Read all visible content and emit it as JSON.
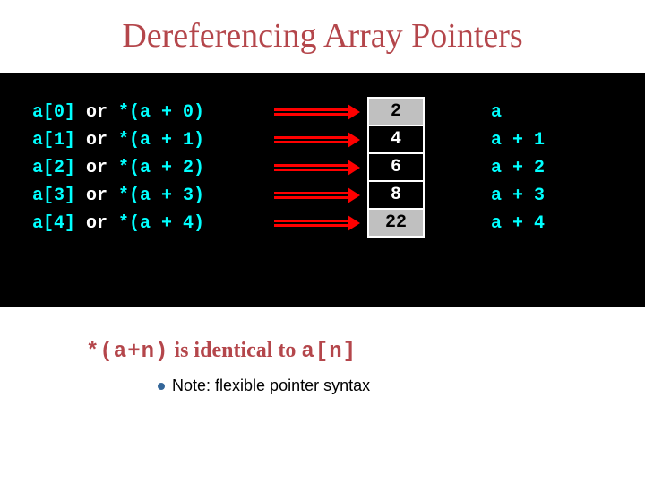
{
  "title": "Dereferencing Array Pointers",
  "title_color": "#b4464b",
  "black_bg": "#000000",
  "cyan": "#00ffff",
  "white": "#ffffff",
  "arrow_color": "#ff0000",
  "rows": [
    {
      "subscript": "a[0]",
      "or": "or",
      "ptr": "*(a + 0)",
      "value": "2",
      "addr": "a",
      "cell_bg": "#c0c0c0",
      "cell_text": "#000000"
    },
    {
      "subscript": "a[1]",
      "or": "or",
      "ptr": "*(a + 1)",
      "value": "4",
      "addr": "a + 1",
      "cell_bg": "#000000",
      "cell_text": "#ffffff"
    },
    {
      "subscript": "a[2]",
      "or": "or",
      "ptr": "*(a + 2)",
      "value": "6",
      "addr": "a + 2",
      "cell_bg": "#000000",
      "cell_text": "#ffffff"
    },
    {
      "subscript": "a[3]",
      "or": "or",
      "ptr": "*(a + 3)",
      "value": "8",
      "addr": "a + 3",
      "cell_bg": "#000000",
      "cell_text": "#ffffff"
    },
    {
      "subscript": "a[4]",
      "or": "or",
      "ptr": "*(a + 4)",
      "value": "22",
      "addr": "a + 4",
      "cell_bg": "#c0c0c0",
      "cell_text": "#000000"
    }
  ],
  "identity": {
    "code_left": "*(a+n)",
    "mid": " is identical to ",
    "code_right": "a[n]",
    "color": "#b4464b"
  },
  "note": {
    "bullet_color": "#336699",
    "text": "Note: flexible pointer syntax",
    "color": "#000000"
  }
}
